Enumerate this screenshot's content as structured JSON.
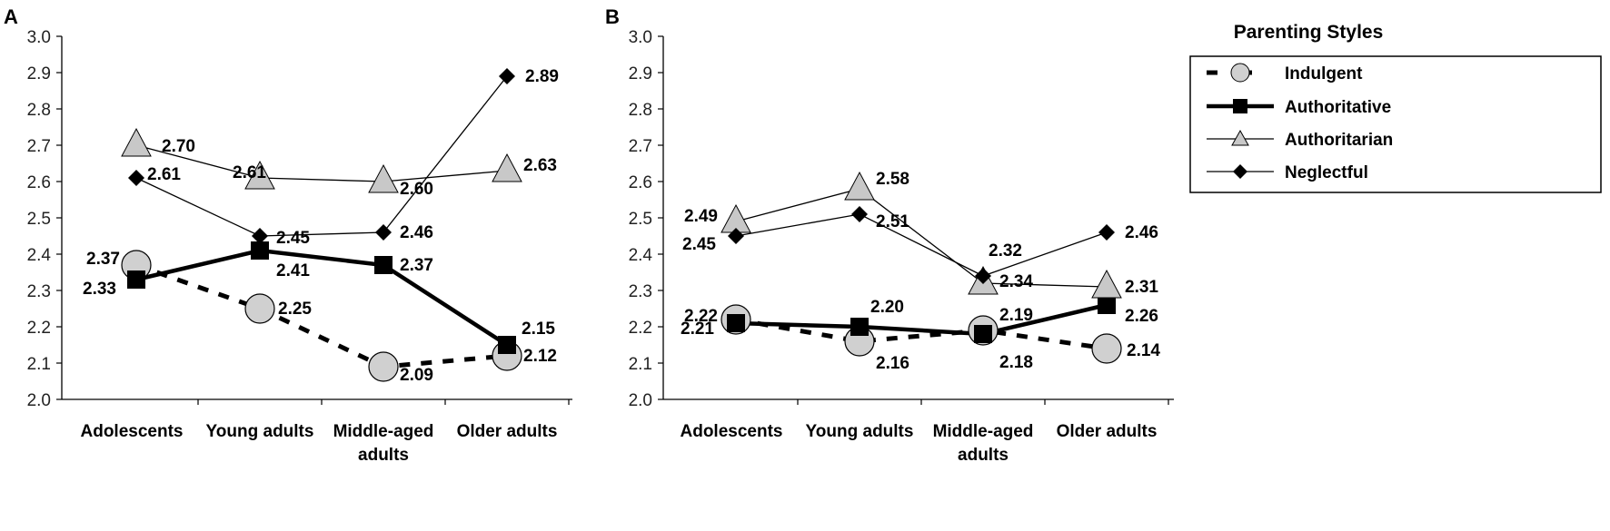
{
  "chart_data": [
    {
      "type": "line",
      "panel_label": "A",
      "categories": [
        "Adolescents",
        "Young adults",
        "Middle-aged adults",
        "Older adults"
      ],
      "ylim": [
        2.0,
        3.0
      ],
      "yticks": [
        "2.0",
        "2.1",
        "2.2",
        "2.3",
        "2.4",
        "2.5",
        "2.6",
        "2.7",
        "2.8",
        "2.9",
        "3.0"
      ],
      "series": [
        {
          "name": "Indulgent",
          "values": [
            2.37,
            2.25,
            2.09,
            2.12
          ]
        },
        {
          "name": "Authoritative",
          "values": [
            2.33,
            2.41,
            2.37,
            2.15
          ]
        },
        {
          "name": "Authoritarian",
          "values": [
            2.7,
            2.61,
            2.6,
            2.63
          ]
        },
        {
          "name": "Neglectful",
          "values": [
            2.61,
            2.45,
            2.46,
            2.89
          ]
        }
      ]
    },
    {
      "type": "line",
      "panel_label": "B",
      "categories": [
        "Adolescents",
        "Young adults",
        "Middle-aged adults",
        "Older adults"
      ],
      "ylim": [
        2.0,
        3.0
      ],
      "yticks": [
        "2.0",
        "2.1",
        "2.2",
        "2.3",
        "2.4",
        "2.5",
        "2.6",
        "2.7",
        "2.8",
        "2.9",
        "3.0"
      ],
      "series": [
        {
          "name": "Indulgent",
          "values": [
            2.22,
            2.16,
            2.19,
            2.14
          ]
        },
        {
          "name": "Authoritative",
          "values": [
            2.21,
            2.2,
            2.18,
            2.26
          ]
        },
        {
          "name": "Authoritarian",
          "values": [
            2.49,
            2.58,
            2.32,
            2.31
          ]
        },
        {
          "name": "Neglectful",
          "values": [
            2.45,
            2.51,
            2.34,
            2.46
          ]
        }
      ]
    }
  ],
  "legend": {
    "title": "Parenting Styles",
    "placement": "right",
    "items": [
      "Indulgent",
      "Authoritative",
      "Authoritarian",
      "Neglectful"
    ]
  }
}
